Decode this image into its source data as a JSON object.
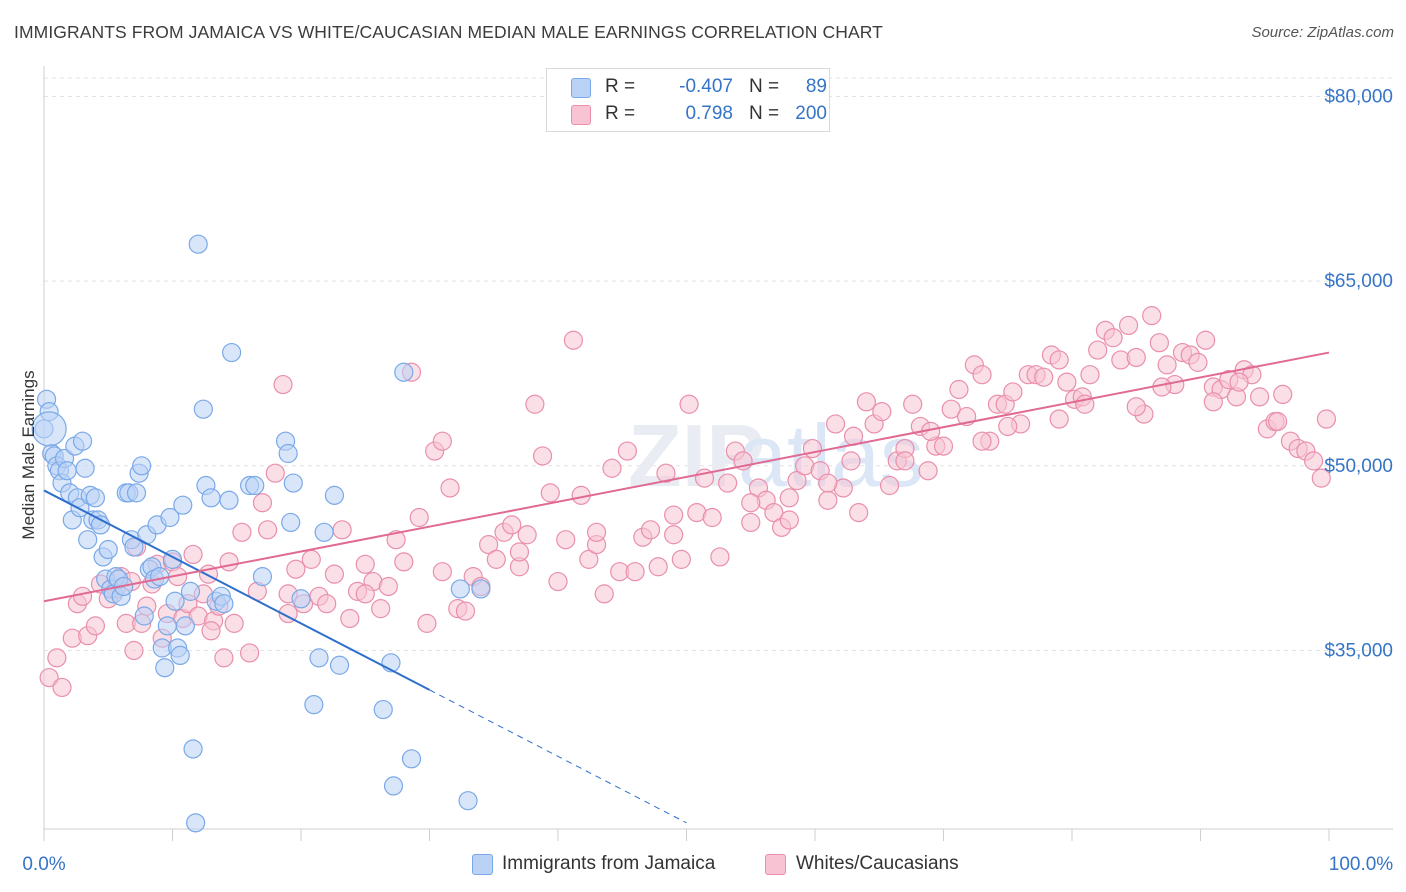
{
  "title": "IMMIGRANTS FROM JAMAICA VS WHITE/CAUCASIAN MEDIAN MALE EARNINGS CORRELATION CHART",
  "source": "Source: ZipAtlas.com",
  "watermark": "ZIPatlas",
  "legend": {
    "r_label": "R =",
    "n_label": "N =",
    "rows": [
      {
        "r": "-0.407",
        "n": "89",
        "color": "#7aa9e8",
        "fill": "#b9d2f5"
      },
      {
        "r": "0.798",
        "n": "200",
        "color": "#e98fac",
        "fill": "#f8c4d4"
      }
    ]
  },
  "chart_data": {
    "type": "scatter",
    "title": "IMMIGRANTS FROM JAMAICA VS WHITE/CAUCASIAN MEDIAN MALE EARNINGS CORRELATION CHART",
    "ylabel": "Median Male Earnings",
    "xlabel": "",
    "x_tick_labels": [
      "0.0%",
      "100.0%"
    ],
    "y_tick_labels": [
      "$35,000",
      "$50,000",
      "$65,000",
      "$80,000"
    ],
    "y_ticks": [
      35000,
      50000,
      65000,
      80000
    ],
    "xlim": [
      0,
      100
    ],
    "ylim": [
      20500,
      81500
    ],
    "grid": true,
    "legend_position": "bottom",
    "series": [
      {
        "name": "Immigrants from Jamaica",
        "color": "#7aa9e8",
        "fill": "#b9d2f5",
        "line_color": "#2f6fcc",
        "trend": {
          "x0": 0,
          "y0": 48000,
          "x1": 30,
          "y1": 31800,
          "dash_to_x": 50
        },
        "points": [
          [
            0.0,
            53.0
          ],
          [
            0.2,
            55.4
          ],
          [
            0.4,
            54.4
          ],
          [
            0.6,
            51.0
          ],
          [
            0.8,
            50.8
          ],
          [
            1.0,
            50.0
          ],
          [
            1.2,
            49.6
          ],
          [
            1.4,
            48.6
          ],
          [
            1.6,
            50.6
          ],
          [
            1.8,
            49.6
          ],
          [
            2.0,
            47.8
          ],
          [
            2.2,
            45.6
          ],
          [
            2.4,
            51.6
          ],
          [
            2.6,
            47.4
          ],
          [
            2.8,
            46.6
          ],
          [
            3.0,
            52.0
          ],
          [
            3.2,
            49.8
          ],
          [
            3.4,
            44.0
          ],
          [
            3.6,
            47.6
          ],
          [
            3.8,
            45.6
          ],
          [
            4.0,
            47.4
          ],
          [
            4.2,
            45.6
          ],
          [
            4.4,
            45.2
          ],
          [
            4.6,
            42.6
          ],
          [
            4.8,
            40.8
          ],
          [
            5.0,
            43.2
          ],
          [
            5.2,
            40.0
          ],
          [
            5.4,
            39.6
          ],
          [
            5.6,
            41.0
          ],
          [
            5.8,
            40.8
          ],
          [
            6.0,
            39.4
          ],
          [
            6.2,
            40.2
          ],
          [
            6.4,
            47.8
          ],
          [
            6.6,
            47.8
          ],
          [
            6.8,
            44.0
          ],
          [
            7.0,
            43.4
          ],
          [
            7.2,
            47.8
          ],
          [
            7.4,
            49.4
          ],
          [
            7.6,
            50.0
          ],
          [
            7.8,
            37.8
          ],
          [
            8.0,
            44.4
          ],
          [
            8.2,
            41.6
          ],
          [
            8.4,
            41.8
          ],
          [
            8.6,
            40.8
          ],
          [
            8.8,
            45.2
          ],
          [
            9.0,
            41.0
          ],
          [
            9.2,
            35.2
          ],
          [
            9.4,
            33.6
          ],
          [
            9.6,
            37.0
          ],
          [
            9.8,
            45.8
          ],
          [
            10.0,
            42.4
          ],
          [
            10.2,
            39.0
          ],
          [
            10.4,
            35.2
          ],
          [
            10.6,
            34.6
          ],
          [
            10.8,
            46.8
          ],
          [
            11.0,
            37.0
          ],
          [
            11.4,
            39.8
          ],
          [
            11.6,
            27.0
          ],
          [
            11.8,
            21.0
          ],
          [
            12.0,
            68.0
          ],
          [
            12.4,
            54.6
          ],
          [
            12.6,
            48.4
          ],
          [
            13.0,
            47.4
          ],
          [
            13.4,
            39.0
          ],
          [
            13.8,
            39.4
          ],
          [
            14.0,
            38.8
          ],
          [
            14.4,
            47.2
          ],
          [
            14.6,
            59.2
          ],
          [
            16.0,
            48.4
          ],
          [
            16.4,
            48.4
          ],
          [
            17.0,
            41.0
          ],
          [
            18.8,
            52.0
          ],
          [
            19.0,
            51.0
          ],
          [
            19.2,
            45.4
          ],
          [
            19.4,
            48.6
          ],
          [
            20.0,
            39.2
          ],
          [
            21.0,
            30.6
          ],
          [
            21.4,
            34.4
          ],
          [
            21.8,
            44.6
          ],
          [
            22.6,
            47.6
          ],
          [
            23.0,
            33.8
          ],
          [
            26.4,
            30.2
          ],
          [
            27.0,
            34.0
          ],
          [
            27.2,
            24.0
          ],
          [
            28.0,
            57.6
          ],
          [
            28.6,
            26.2
          ],
          [
            32.4,
            40.0
          ],
          [
            33.0,
            22.8
          ],
          [
            34.0,
            40.0
          ]
        ]
      },
      {
        "name": "Whites/Caucasians",
        "color": "#e98fac",
        "fill": "#f8c4d4",
        "line_color": "#e06a93",
        "trend": {
          "x0": 0,
          "y0": 39000,
          "x1": 100,
          "y1": 59200
        },
        "points": [
          [
            0.4,
            32.8
          ],
          [
            1.0,
            34.4
          ],
          [
            1.4,
            32.0
          ],
          [
            2.2,
            36.0
          ],
          [
            2.6,
            38.8
          ],
          [
            3.0,
            39.4
          ],
          [
            3.4,
            36.2
          ],
          [
            4.0,
            37.0
          ],
          [
            4.4,
            40.4
          ],
          [
            5.0,
            39.2
          ],
          [
            5.6,
            40.0
          ],
          [
            6.0,
            41.0
          ],
          [
            6.4,
            37.2
          ],
          [
            6.8,
            40.6
          ],
          [
            7.2,
            43.4
          ],
          [
            7.6,
            37.2
          ],
          [
            8.0,
            38.6
          ],
          [
            8.4,
            40.4
          ],
          [
            8.8,
            42.0
          ],
          [
            9.2,
            36.0
          ],
          [
            9.6,
            38.0
          ],
          [
            10.0,
            42.2
          ],
          [
            10.4,
            41.0
          ],
          [
            10.8,
            37.6
          ],
          [
            11.2,
            38.8
          ],
          [
            11.6,
            42.8
          ],
          [
            12.0,
            37.8
          ],
          [
            12.4,
            39.6
          ],
          [
            12.8,
            41.2
          ],
          [
            13.2,
            37.4
          ],
          [
            13.6,
            38.6
          ],
          [
            14.0,
            34.4
          ],
          [
            14.4,
            42.2
          ],
          [
            14.8,
            37.2
          ],
          [
            15.4,
            44.6
          ],
          [
            16.0,
            34.8
          ],
          [
            16.6,
            39.8
          ],
          [
            17.0,
            47.0
          ],
          [
            17.4,
            44.8
          ],
          [
            18.0,
            49.4
          ],
          [
            18.6,
            56.6
          ],
          [
            19.0,
            39.6
          ],
          [
            19.6,
            41.6
          ],
          [
            20.2,
            38.8
          ],
          [
            20.8,
            42.4
          ],
          [
            21.4,
            39.4
          ],
          [
            22.0,
            38.8
          ],
          [
            22.6,
            41.2
          ],
          [
            23.2,
            44.8
          ],
          [
            23.8,
            37.6
          ],
          [
            24.4,
            39.8
          ],
          [
            25.0,
            42.0
          ],
          [
            25.6,
            40.6
          ],
          [
            26.2,
            38.4
          ],
          [
            26.8,
            40.2
          ],
          [
            27.4,
            44.0
          ],
          [
            28.0,
            42.2
          ],
          [
            28.6,
            57.6
          ],
          [
            29.2,
            45.8
          ],
          [
            29.8,
            37.2
          ],
          [
            30.4,
            51.2
          ],
          [
            31.0,
            52.0
          ],
          [
            31.6,
            48.2
          ],
          [
            32.2,
            38.4
          ],
          [
            32.8,
            38.2
          ],
          [
            33.4,
            41.0
          ],
          [
            34.0,
            40.2
          ],
          [
            34.6,
            43.6
          ],
          [
            35.2,
            42.4
          ],
          [
            35.8,
            44.6
          ],
          [
            36.4,
            45.2
          ],
          [
            37.0,
            41.8
          ],
          [
            37.6,
            44.4
          ],
          [
            38.2,
            55.0
          ],
          [
            38.8,
            50.8
          ],
          [
            39.4,
            47.8
          ],
          [
            40.0,
            40.6
          ],
          [
            40.6,
            44.0
          ],
          [
            41.2,
            60.2
          ],
          [
            41.8,
            47.6
          ],
          [
            42.4,
            42.4
          ],
          [
            43.0,
            43.6
          ],
          [
            43.6,
            39.6
          ],
          [
            44.2,
            49.8
          ],
          [
            44.8,
            41.4
          ],
          [
            45.4,
            51.2
          ],
          [
            46.0,
            41.4
          ],
          [
            46.6,
            44.2
          ],
          [
            47.2,
            44.8
          ],
          [
            47.8,
            41.8
          ],
          [
            48.4,
            49.4
          ],
          [
            49.0,
            44.4
          ],
          [
            49.6,
            42.4
          ],
          [
            50.2,
            55.0
          ],
          [
            50.8,
            46.2
          ],
          [
            51.4,
            49.0
          ],
          [
            52.0,
            45.8
          ],
          [
            52.6,
            42.6
          ],
          [
            53.2,
            48.6
          ],
          [
            53.8,
            51.2
          ],
          [
            54.4,
            50.4
          ],
          [
            55.0,
            45.4
          ],
          [
            55.6,
            48.2
          ],
          [
            56.2,
            47.2
          ],
          [
            56.8,
            46.2
          ],
          [
            57.4,
            45.0
          ],
          [
            58.0,
            47.4
          ],
          [
            58.6,
            48.8
          ],
          [
            59.2,
            50.0
          ],
          [
            59.8,
            51.4
          ],
          [
            60.4,
            49.6
          ],
          [
            61.0,
            47.2
          ],
          [
            61.6,
            53.4
          ],
          [
            62.2,
            48.2
          ],
          [
            62.8,
            50.4
          ],
          [
            63.4,
            46.2
          ],
          [
            64.0,
            55.2
          ],
          [
            64.6,
            53.4
          ],
          [
            65.2,
            54.4
          ],
          [
            65.8,
            48.4
          ],
          [
            66.4,
            50.4
          ],
          [
            67.0,
            51.4
          ],
          [
            67.6,
            55.0
          ],
          [
            68.2,
            53.2
          ],
          [
            68.8,
            49.6
          ],
          [
            69.4,
            51.6
          ],
          [
            70.0,
            51.6
          ],
          [
            70.6,
            54.6
          ],
          [
            71.2,
            56.2
          ],
          [
            71.8,
            54.0
          ],
          [
            72.4,
            58.2
          ],
          [
            73.0,
            57.4
          ],
          [
            73.6,
            52.0
          ],
          [
            74.2,
            55.0
          ],
          [
            74.8,
            55.0
          ],
          [
            75.4,
            56.0
          ],
          [
            76.0,
            53.4
          ],
          [
            76.6,
            57.4
          ],
          [
            77.2,
            57.4
          ],
          [
            77.8,
            57.2
          ],
          [
            78.4,
            59.0
          ],
          [
            79.0,
            58.6
          ],
          [
            79.6,
            56.8
          ],
          [
            80.2,
            55.4
          ],
          [
            80.8,
            55.6
          ],
          [
            81.4,
            57.4
          ],
          [
            82.0,
            59.4
          ],
          [
            82.6,
            61.0
          ],
          [
            83.2,
            60.4
          ],
          [
            83.8,
            58.6
          ],
          [
            84.4,
            61.4
          ],
          [
            85.0,
            58.8
          ],
          [
            85.6,
            54.2
          ],
          [
            86.2,
            62.2
          ],
          [
            86.8,
            60.0
          ],
          [
            87.4,
            58.2
          ],
          [
            88.0,
            56.6
          ],
          [
            88.6,
            59.2
          ],
          [
            89.2,
            59.0
          ],
          [
            89.8,
            58.4
          ],
          [
            90.4,
            60.2
          ],
          [
            91.0,
            56.4
          ],
          [
            91.6,
            56.2
          ],
          [
            92.2,
            57.0
          ],
          [
            92.8,
            55.6
          ],
          [
            93.4,
            57.8
          ],
          [
            94.0,
            57.4
          ],
          [
            94.6,
            55.6
          ],
          [
            95.2,
            53.0
          ],
          [
            95.8,
            53.6
          ],
          [
            96.4,
            55.8
          ],
          [
            97.0,
            52.0
          ],
          [
            97.6,
            51.4
          ],
          [
            98.2,
            51.2
          ],
          [
            98.8,
            50.4
          ],
          [
            99.4,
            49.0
          ],
          [
            99.8,
            53.8
          ],
          [
            63.0,
            52.4
          ],
          [
            69.0,
            52.8
          ],
          [
            75.0,
            53.2
          ],
          [
            81.0,
            55.0
          ],
          [
            87.0,
            56.4
          ],
          [
            93.0,
            56.8
          ],
          [
            96.0,
            53.6
          ],
          [
            91.0,
            55.2
          ],
          [
            85.0,
            54.8
          ],
          [
            79.0,
            53.8
          ],
          [
            73.0,
            52.0
          ],
          [
            67.0,
            50.4
          ],
          [
            61.0,
            48.6
          ],
          [
            55.0,
            47.0
          ],
          [
            49.0,
            46.0
          ],
          [
            43.0,
            44.6
          ],
          [
            37.0,
            43.0
          ],
          [
            31.0,
            41.4
          ],
          [
            25.0,
            39.6
          ],
          [
            19.0,
            38.0
          ],
          [
            13.0,
            36.6
          ],
          [
            7.0,
            35.0
          ],
          [
            58.0,
            45.6
          ]
        ]
      }
    ]
  }
}
